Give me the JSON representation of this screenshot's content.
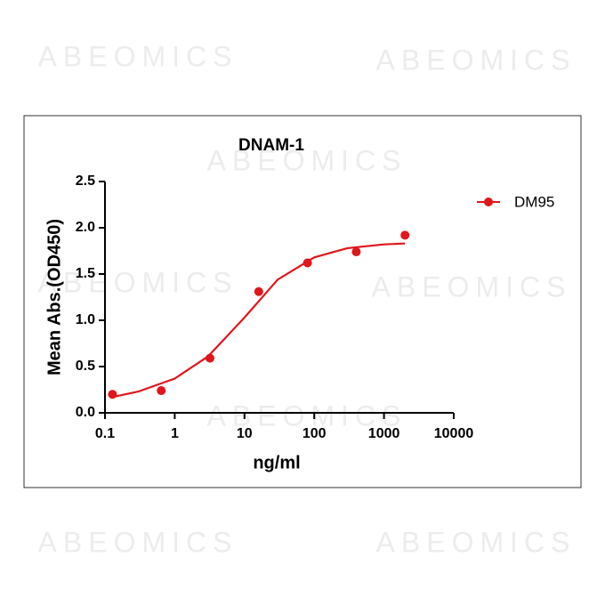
{
  "watermark": "ABEOMICS",
  "chart_data": {
    "type": "scatter",
    "title": "DNAM-1",
    "xlabel": "ng/ml",
    "ylabel": "Mean Abs.(OD450)",
    "xscale": "log",
    "x": [
      0.128,
      0.64,
      3.2,
      16,
      80,
      400,
      2000
    ],
    "series": [
      {
        "name": "DM95",
        "color": "#e0161c",
        "values": [
          0.2,
          0.24,
          0.59,
          1.31,
          1.62,
          1.74,
          1.92
        ],
        "curve": {
          "x": [
            0.128,
            0.3,
            1,
            3,
            10,
            30,
            100,
            300,
            1000,
            2000
          ],
          "values": [
            0.17,
            0.23,
            0.37,
            0.61,
            1.03,
            1.44,
            1.68,
            1.78,
            1.82,
            1.83
          ]
        }
      }
    ],
    "xlim": [
      0.1,
      10000
    ],
    "ylim": [
      0,
      2.5
    ],
    "xticks": [
      0.1,
      1,
      10,
      100,
      1000,
      10000
    ],
    "yticks": [
      {
        "value": 0,
        "label": "0.0"
      },
      0.5,
      {
        "value": 1,
        "label": "1.0"
      },
      1.5,
      {
        "value": 2,
        "label": "2.0"
      },
      2.5
    ],
    "legend": "upper right"
  }
}
